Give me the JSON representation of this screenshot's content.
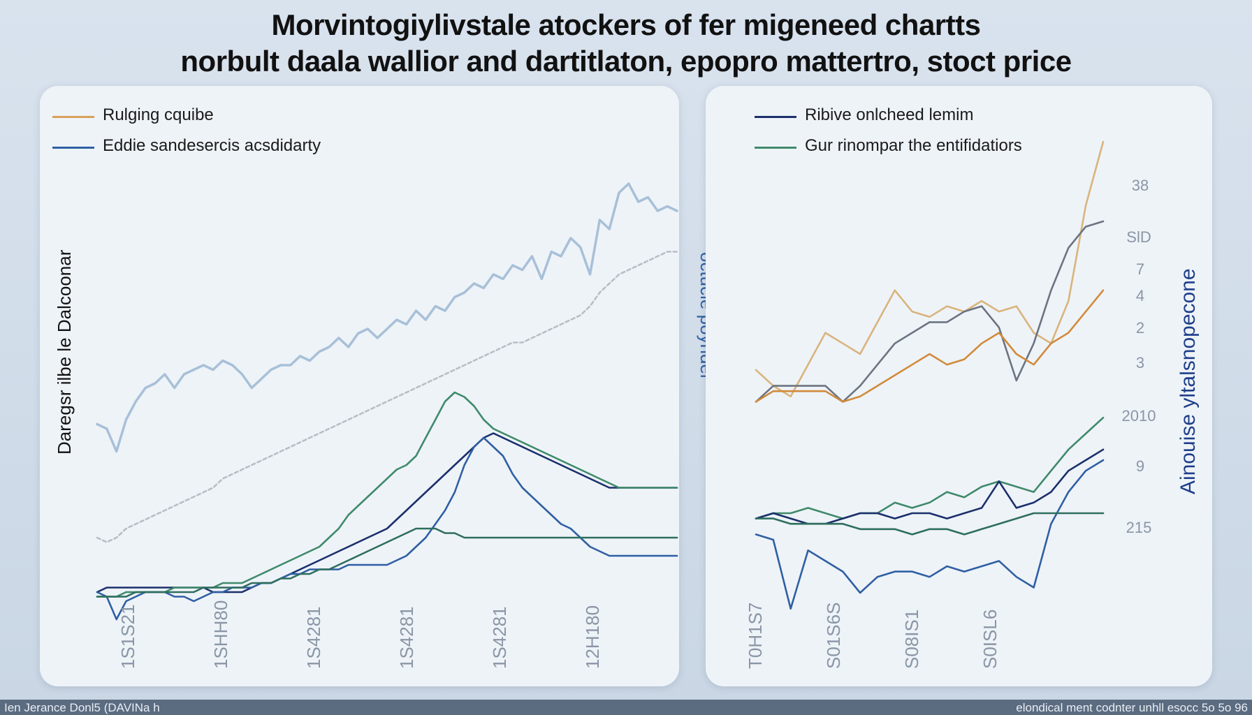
{
  "title_line1": "Morvintogiylivstale atockers of fer migeneed chartts",
  "title_line2": "norbult daala wallior and dartitlaton, epopro mattertro, stoct price",
  "footer_left": "Ien Jerance Donl5 (DAVINa h",
  "footer_right": "elondical ment codnter unhll esocc 5o 5o 96",
  "colors": {
    "orange": "#d28a3a",
    "light_blue": "#a8c0d8",
    "navy": "#1b2f6b",
    "blue": "#2f5fa3",
    "green": "#3f8a6a",
    "teal_green": "#2e6e5e",
    "gray": "#b8bec6",
    "tan": "#d9b47c",
    "slate": "#6b7480"
  },
  "chart_data": [
    {
      "type": "line",
      "title": "",
      "legend": [
        {
          "label": "Rulging cquibe",
          "color": "#d9a05a"
        },
        {
          "label": "Eddie sandesercis acsdidarty",
          "color": "#2f5fa3"
        }
      ],
      "ylabel": "Daregsr ilbe le Dalcoonar",
      "ylabel_right": "octucle poyndel",
      "x_ticks": [
        "1S1S21",
        "1SHH80",
        "1S4281",
        "1S4281",
        "1S4281",
        "12H180"
      ],
      "x": [
        0,
        1,
        2,
        3,
        4,
        5,
        6,
        7,
        8,
        9,
        10,
        11,
        12,
        13,
        14,
        15,
        16,
        17,
        18,
        19,
        20,
        21,
        22,
        23,
        24,
        25,
        26,
        27,
        28,
        29,
        30,
        31,
        32,
        33,
        34,
        35,
        36,
        37,
        38,
        39,
        40,
        41,
        42,
        43,
        44,
        45,
        46,
        47,
        48,
        49,
        50,
        51,
        52,
        53,
        54,
        55,
        56,
        57,
        58,
        59,
        60
      ],
      "ylim": [
        0,
        100
      ],
      "series": [
        {
          "color": "#a8c0d8",
          "values": [
            47,
            46,
            41,
            48,
            52,
            55,
            56,
            58,
            55,
            58,
            59,
            60,
            59,
            61,
            60,
            58,
            55,
            57,
            59,
            60,
            60,
            62,
            61,
            63,
            64,
            66,
            64,
            67,
            68,
            66,
            68,
            70,
            69,
            72,
            70,
            73,
            72,
            75,
            76,
            78,
            77,
            80,
            79,
            82,
            81,
            84,
            79,
            85,
            84,
            88,
            86,
            80,
            92,
            90,
            98,
            100,
            96,
            97,
            94,
            95,
            94
          ]
        },
        {
          "color": "#b8bec6",
          "values": [
            22,
            21,
            22,
            24,
            25,
            26,
            27,
            28,
            29,
            30,
            31,
            32,
            33,
            35,
            36,
            37,
            38,
            39,
            40,
            41,
            42,
            43,
            44,
            45,
            46,
            47,
            48,
            49,
            50,
            51,
            52,
            53,
            54,
            55,
            56,
            57,
            58,
            59,
            60,
            61,
            62,
            63,
            64,
            65,
            65,
            66,
            67,
            68,
            69,
            70,
            71,
            73,
            76,
            78,
            80,
            81,
            82,
            83,
            84,
            85,
            85
          ]
        },
        {
          "color": "#1b2f6b",
          "values": [
            10,
            11,
            11,
            11,
            11,
            11,
            11,
            11,
            11,
            11,
            11,
            11,
            10,
            10,
            10,
            10,
            11,
            12,
            12,
            13,
            14,
            15,
            16,
            17,
            18,
            19,
            20,
            21,
            22,
            23,
            24,
            26,
            28,
            30,
            32,
            34,
            36,
            38,
            40,
            42,
            44,
            45,
            44,
            43,
            42,
            41,
            40,
            39,
            38,
            37,
            36,
            35,
            34,
            33,
            33,
            33,
            33,
            33,
            33,
            33,
            33
          ]
        },
        {
          "color": "#2f5fa3",
          "values": [
            10,
            9,
            4,
            8,
            9,
            10,
            10,
            10,
            9,
            9,
            8,
            9,
            10,
            10,
            11,
            11,
            11,
            12,
            12,
            13,
            14,
            14,
            15,
            15,
            15,
            15,
            16,
            16,
            16,
            16,
            16,
            17,
            18,
            20,
            22,
            25,
            28,
            32,
            38,
            42,
            44,
            42,
            40,
            36,
            33,
            31,
            29,
            27,
            25,
            24,
            22,
            20,
            19,
            18,
            18,
            18,
            18,
            18,
            18,
            18,
            18
          ]
        },
        {
          "color": "#3f8a6a",
          "values": [
            9,
            9,
            9,
            10,
            10,
            10,
            10,
            10,
            11,
            11,
            11,
            11,
            11,
            12,
            12,
            12,
            13,
            14,
            15,
            16,
            17,
            18,
            19,
            20,
            22,
            24,
            27,
            29,
            31,
            33,
            35,
            37,
            38,
            40,
            44,
            48,
            52,
            54,
            53,
            51,
            48,
            46,
            45,
            44,
            43,
            42,
            41,
            40,
            39,
            38,
            37,
            36,
            35,
            34,
            33,
            33,
            33,
            33,
            33,
            33,
            33
          ]
        },
        {
          "color": "#2e6e5e",
          "values": [
            9,
            9,
            9,
            9,
            10,
            10,
            10,
            10,
            10,
            10,
            10,
            11,
            11,
            11,
            11,
            11,
            12,
            12,
            12,
            13,
            13,
            14,
            14,
            15,
            15,
            16,
            17,
            18,
            19,
            20,
            21,
            22,
            23,
            24,
            24,
            24,
            23,
            23,
            22,
            22,
            22,
            22,
            22,
            22,
            22,
            22,
            22,
            22,
            22,
            22,
            22,
            22,
            22,
            22,
            22,
            22,
            22,
            22,
            22,
            22,
            22
          ]
        }
      ]
    },
    {
      "type": "line",
      "title": "",
      "legend": [
        {
          "label": "Ribive onlcheed lemim",
          "color": "#1b2f6b"
        },
        {
          "label": "Gur rinompar the entifidatiors",
          "color": "#3f8a6a"
        }
      ],
      "ylabel_right": "Ainouise yltalsnopecone",
      "y_ticks_right": [
        "38",
        "SlD",
        "7",
        "4",
        "2",
        "3",
        "2010",
        "9",
        "215"
      ],
      "x_ticks": [
        "T0H1S7",
        "S01S6S",
        "S08IS1",
        "S0ISL6"
      ],
      "x": [
        0,
        1,
        2,
        3,
        4,
        5,
        6,
        7,
        8,
        9,
        10,
        11,
        12,
        13,
        14,
        15,
        16,
        17,
        18,
        19,
        20
      ],
      "ylim": [
        0,
        100
      ],
      "series": [
        {
          "color": "#d9b47c",
          "values": [
            57,
            54,
            52,
            58,
            64,
            62,
            60,
            66,
            72,
            68,
            67,
            69,
            68,
            70,
            68,
            69,
            64,
            62,
            70,
            88,
            100
          ]
        },
        {
          "color": "#6b7480",
          "values": [
            51,
            54,
            54,
            54,
            54,
            51,
            54,
            58,
            62,
            64,
            66,
            66,
            68,
            69,
            65,
            55,
            62,
            72,
            80,
            84,
            85
          ]
        },
        {
          "color": "#d28a3a",
          "values": [
            51,
            53,
            53,
            53,
            53,
            51,
            52,
            54,
            56,
            58,
            60,
            58,
            59,
            62,
            64,
            60,
            58,
            62,
            64,
            68,
            72
          ]
        },
        {
          "color": "#3f8a6a",
          "values": [
            29,
            30,
            30,
            31,
            30,
            29,
            30,
            30,
            32,
            31,
            32,
            34,
            33,
            35,
            36,
            35,
            34,
            38,
            42,
            45,
            48
          ]
        },
        {
          "color": "#1b2f6b",
          "values": [
            29,
            30,
            29,
            28,
            28,
            29,
            30,
            30,
            29,
            30,
            30,
            29,
            30,
            31,
            36,
            31,
            32,
            34,
            38,
            40,
            42
          ]
        },
        {
          "color": "#2f5fa3",
          "values": [
            26,
            25,
            12,
            23,
            21,
            19,
            15,
            18,
            19,
            19,
            18,
            20,
            19,
            20,
            21,
            18,
            16,
            28,
            34,
            38,
            40
          ]
        },
        {
          "color": "#2e6e5e",
          "values": [
            29,
            29,
            28,
            28,
            28,
            28,
            27,
            27,
            27,
            26,
            27,
            27,
            26,
            27,
            28,
            29,
            30,
            30,
            30,
            30,
            30
          ]
        }
      ]
    }
  ]
}
